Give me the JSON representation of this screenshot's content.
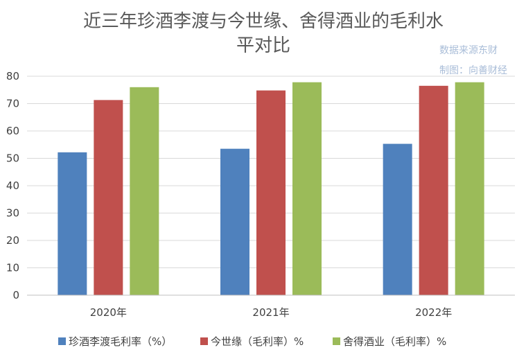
{
  "chart_data": {
    "type": "bar",
    "title_lines": [
      "近三年珍酒李渡与今世缘、舍得酒业的毛利水",
      "平对比"
    ],
    "source_note_lines": [
      "数据来源东财",
      "制图：向善财经"
    ],
    "categories": [
      "2020年",
      "2021年",
      "2022年"
    ],
    "series": [
      {
        "name": "珍酒李渡毛利率（%）",
        "color": "#4f81bd",
        "values": [
          52.2,
          53.5,
          55.3
        ]
      },
      {
        "name": "今世缘（毛利率）%",
        "color": "#c0504d",
        "values": [
          71.3,
          74.8,
          76.5
        ]
      },
      {
        "name": "舍得酒业（毛利率）%",
        "color": "#9bbb59",
        "values": [
          76.0,
          77.8,
          77.8
        ]
      }
    ],
    "ylim": [
      0,
      80
    ],
    "yticks": [
      "0",
      "10",
      "20",
      "30",
      "40",
      "50",
      "60",
      "70",
      "80"
    ],
    "grid": true,
    "legend_position": "bottom"
  }
}
